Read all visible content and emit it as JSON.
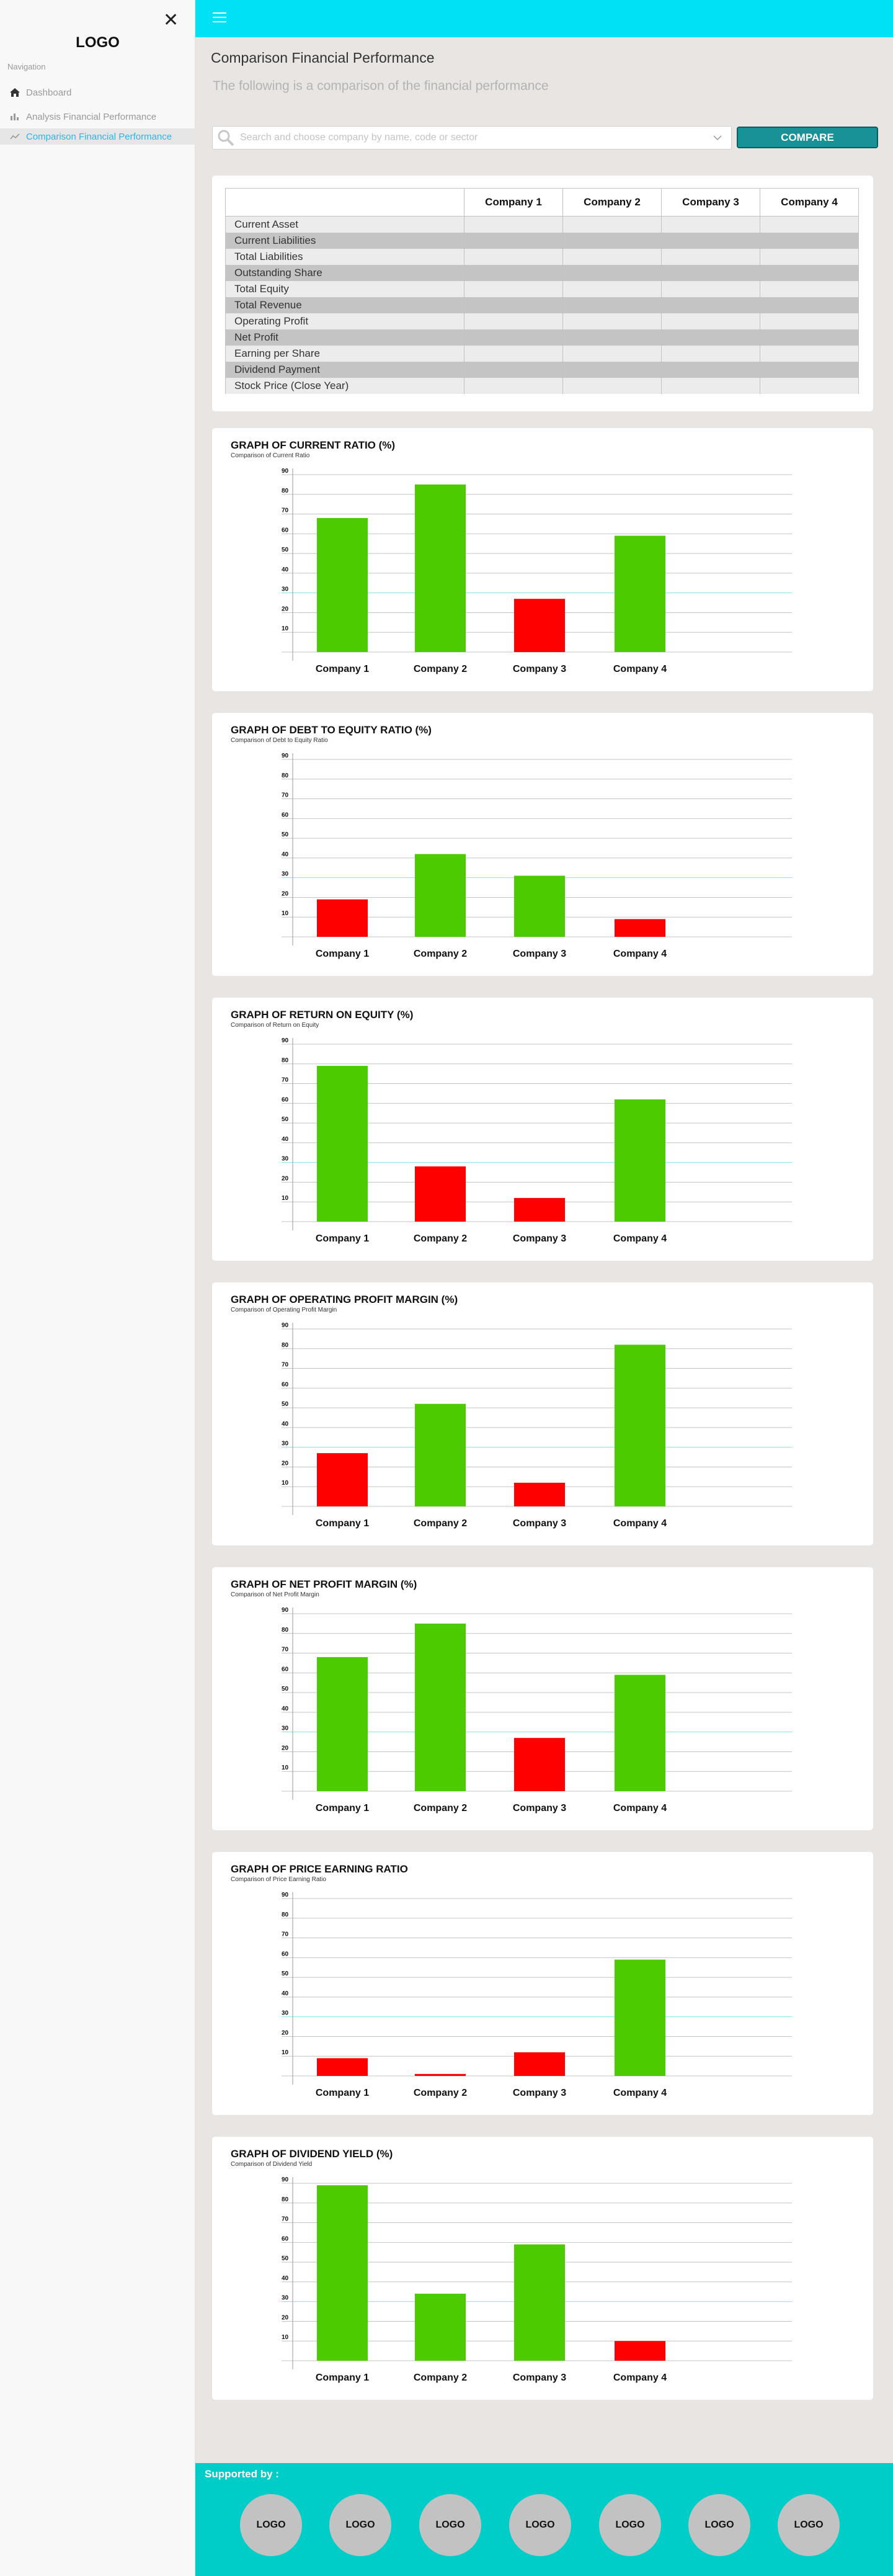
{
  "sidebar": {
    "logo": "LOGO",
    "nav_title": "Navigation",
    "items": [
      {
        "label": "Dashboard",
        "icon": "home-icon"
      },
      {
        "label": "Analysis Financial Performance",
        "icon": "bar-chart-icon"
      },
      {
        "label": "Comparison Financial Performance",
        "icon": "trend-chart-icon",
        "active": true
      }
    ]
  },
  "header": {
    "title": "Comparison Financial Performance",
    "subtitle": "The following is a comparison of the financial performance"
  },
  "search": {
    "placeholder": "Search and choose company by name, code or sector",
    "value": ""
  },
  "compare_button": "COMPARE",
  "table": {
    "columns": [
      "Company 1",
      "Company 2",
      "Company 3",
      "Company 4"
    ],
    "rows": [
      "Current Asset",
      "Current Liabilities",
      "Total Liabilities",
      "Outstanding Share",
      "Total Equity",
      "Total Revenue",
      "Operating Profit",
      "Net Profit",
      "Earning per Share",
      "Dividend Payment",
      "Stock Price (Close Year)"
    ]
  },
  "colors": {
    "good": "#4ccc00",
    "bad": "#ff0000",
    "accent": "#00e1f6",
    "footer": "#00cdc8",
    "button": "#189297"
  },
  "chart_data": [
    {
      "type": "bar",
      "title": "GRAPH OF CURRENT RATIO (%)",
      "subtitle": "Comparison of Current Ratio",
      "categories": [
        "Company 1",
        "Company 2",
        "Company 3",
        "Company 4"
      ],
      "values": [
        68,
        85,
        27,
        59
      ],
      "status": [
        "good",
        "good",
        "bad",
        "good"
      ],
      "yticks": [
        10,
        20,
        30,
        40,
        50,
        60,
        70,
        80,
        90
      ],
      "ylim": [
        0,
        90
      ]
    },
    {
      "type": "bar",
      "title": "GRAPH OF DEBT TO EQUITY RATIO (%)",
      "subtitle": "Comparison of Debt to Equity Ratio",
      "categories": [
        "Company 1",
        "Company 2",
        "Company 3",
        "Company 4"
      ],
      "values": [
        19,
        42,
        31,
        9
      ],
      "status": [
        "bad",
        "good",
        "good",
        "bad"
      ],
      "yticks": [
        10,
        20,
        30,
        40,
        50,
        60,
        70,
        80,
        90
      ],
      "ylim": [
        0,
        90
      ]
    },
    {
      "type": "bar",
      "title": "GRAPH OF RETURN ON EQUITY  (%)",
      "subtitle": "Comparison of Return on Equity",
      "categories": [
        "Company 1",
        "Company 2",
        "Company 3",
        "Company 4"
      ],
      "values": [
        79,
        28,
        12,
        62
      ],
      "status": [
        "good",
        "bad",
        "bad",
        "good"
      ],
      "yticks": [
        10,
        20,
        30,
        40,
        50,
        60,
        70,
        80,
        90
      ],
      "ylim": [
        0,
        90
      ]
    },
    {
      "type": "bar",
      "title": "GRAPH OF OPERATING PROFIT MARGIN  (%)",
      "subtitle": "Comparison of Operating Profit Margin",
      "categories": [
        "Company 1",
        "Company 2",
        "Company 3",
        "Company 4"
      ],
      "values": [
        27,
        52,
        12,
        82
      ],
      "status": [
        "bad",
        "good",
        "bad",
        "good"
      ],
      "yticks": [
        10,
        20,
        30,
        40,
        50,
        60,
        70,
        80,
        90
      ],
      "ylim": [
        0,
        90
      ]
    },
    {
      "type": "bar",
      "title": "GRAPH OF NET PROFIT MARGIN (%)",
      "subtitle": "Comparison of Net Profit Margin",
      "categories": [
        "Company 1",
        "Company 2",
        "Company 3",
        "Company 4"
      ],
      "values": [
        68,
        85,
        27,
        59
      ],
      "status": [
        "good",
        "good",
        "bad",
        "good"
      ],
      "yticks": [
        10,
        20,
        30,
        40,
        50,
        60,
        70,
        80,
        90
      ],
      "ylim": [
        0,
        90
      ]
    },
    {
      "type": "bar",
      "title": "GRAPH OF PRICE EARNING RATIO",
      "subtitle": "Comparison of Price Earning Ratio",
      "categories": [
        "Company 1",
        "Company 2",
        "Company 3",
        "Company 4"
      ],
      "values": [
        9,
        1,
        12,
        59
      ],
      "status": [
        "bad",
        "bad",
        "bad",
        "good"
      ],
      "yticks": [
        10,
        20,
        30,
        40,
        50,
        60,
        70,
        80,
        90
      ],
      "ylim": [
        0,
        90
      ]
    },
    {
      "type": "bar",
      "title": "GRAPH OF DIVIDEND YIELD (%)",
      "subtitle": "Comparison of Dividend Yield",
      "categories": [
        "Company 1",
        "Company 2",
        "Company 3",
        "Company 4"
      ],
      "values": [
        89,
        34,
        59,
        10
      ],
      "status": [
        "good",
        "good",
        "good",
        "bad"
      ],
      "yticks": [
        10,
        20,
        30,
        40,
        50,
        60,
        70,
        80,
        90
      ],
      "ylim": [
        0,
        90
      ]
    }
  ],
  "footer": {
    "supported_by": "Supported by :",
    "sponsors": [
      "LOGO",
      "LOGO",
      "LOGO",
      "LOGO",
      "LOGO",
      "LOGO",
      "LOGO"
    ]
  }
}
